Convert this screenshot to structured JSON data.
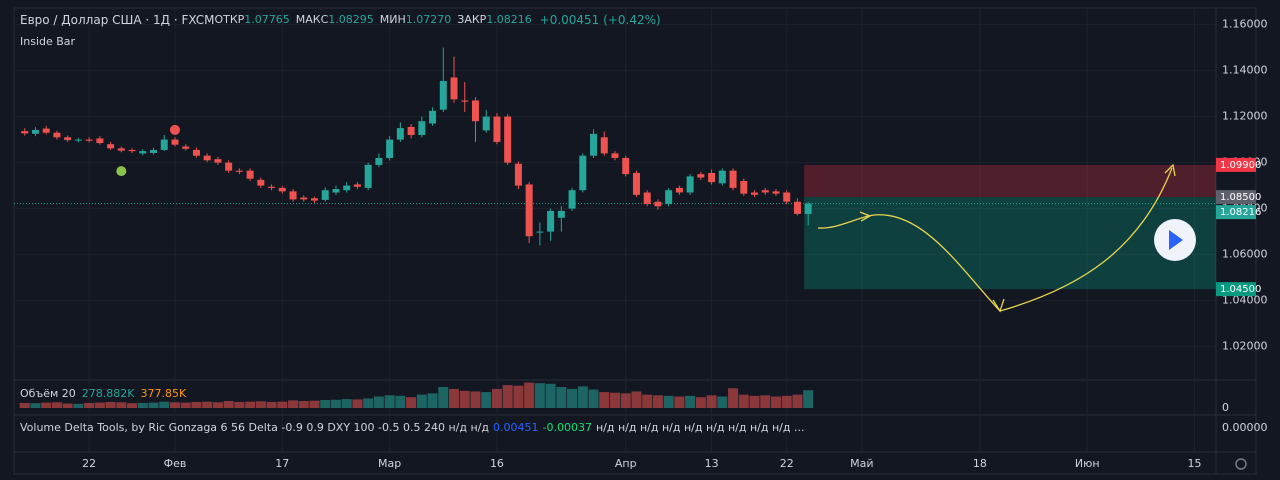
{
  "chart_data": {
    "type": "candlestick",
    "symbol": "Евро / Доллар США · 1Д · FXCM",
    "ohlc_legend": [
      {
        "label": "ОТКР",
        "value": "1.07765"
      },
      {
        "label": "МАКС",
        "value": "1.08295"
      },
      {
        "label": "МИН",
        "value": "1.07270"
      },
      {
        "label": "ЗАКР",
        "value": "1.08216"
      }
    ],
    "change": "+0.00451 (+0.42%)",
    "indicator": "Inside Bar",
    "up_color": "#26a69a",
    "down_color": "#ef5350",
    "open": [
      1.1137,
      1.1125,
      1.1148,
      1.113,
      1.111,
      1.1097,
      1.11,
      1.1105,
      1.108,
      1.1062,
      1.1055,
      1.104,
      1.1042,
      1.1055,
      1.11,
      1.107,
      1.1055,
      1.103,
      1.1015,
      1.1,
      1.0965,
      1.0965,
      1.0925,
      1.0895,
      1.089,
      1.0875,
      1.0848,
      1.0845,
      1.0838,
      1.087,
      1.088,
      1.0905,
      1.089,
      1.099,
      1.102,
      1.11,
      1.1155,
      1.112,
      1.117,
      1.123,
      1.137,
      1.127,
      1.127,
      1.114,
      1.12,
      1.12,
      1.0995,
      1.0905,
      1.07,
      1.07,
      1.076,
      1.08,
      1.088,
      1.103,
      1.111,
      1.104,
      1.102,
      1.0955,
      1.087,
      1.083,
      1.082,
      1.089,
      1.087,
      1.095,
      1.0955,
      1.091,
      1.0965,
      1.092,
      1.087,
      1.088,
      1.0875,
      1.087,
      1.083,
      1.07765
    ],
    "high": [
      1.1149,
      1.1154,
      1.116,
      1.1138,
      1.1118,
      1.1108,
      1.111,
      1.1115,
      1.109,
      1.107,
      1.1062,
      1.1058,
      1.1065,
      1.112,
      1.111,
      1.108,
      1.1065,
      1.104,
      1.1025,
      1.101,
      1.0975,
      1.0975,
      1.0935,
      1.0905,
      1.0898,
      1.0885,
      1.0858,
      1.0852,
      1.0892,
      1.09,
      1.0915,
      1.0915,
      1.1,
      1.104,
      1.1115,
      1.1175,
      1.1168,
      1.12,
      1.124,
      1.15,
      1.146,
      1.135,
      1.1285,
      1.123,
      1.1215,
      1.121,
      1.1005,
      1.0915,
      1.074,
      1.08,
      1.081,
      1.089,
      1.104,
      1.1145,
      1.1135,
      1.105,
      1.103,
      1.0965,
      1.088,
      1.084,
      1.089,
      1.09,
      1.095,
      1.096,
      1.097,
      1.0975,
      1.0975,
      1.093,
      1.088,
      1.089,
      1.0885,
      1.088,
      1.0845,
      1.08295
    ],
    "low": [
      1.1118,
      1.1115,
      1.1122,
      1.11,
      1.109,
      1.1088,
      1.1088,
      1.1078,
      1.1055,
      1.1045,
      1.1042,
      1.1032,
      1.1035,
      1.105,
      1.107,
      1.1052,
      1.1022,
      1.1002,
      1.099,
      1.0955,
      1.095,
      1.092,
      1.089,
      1.088,
      1.0865,
      1.083,
      1.083,
      1.0825,
      1.083,
      1.086,
      1.087,
      1.0885,
      1.088,
      1.098,
      1.101,
      1.109,
      1.1105,
      1.111,
      1.116,
      1.122,
      1.126,
      1.122,
      1.109,
      1.113,
      1.108,
      1.099,
      1.0885,
      1.065,
      1.064,
      1.066,
      1.07,
      1.079,
      1.087,
      1.102,
      1.103,
      1.101,
      1.094,
      1.085,
      1.081,
      1.0795,
      1.081,
      1.086,
      1.086,
      1.0925,
      1.0905,
      1.09,
      1.088,
      1.0855,
      1.085,
      1.086,
      1.0855,
      1.082,
      1.077,
      1.0727
    ],
    "close": [
      1.1127,
      1.1142,
      1.113,
      1.111,
      1.1098,
      1.11,
      1.1095,
      1.1085,
      1.1062,
      1.1052,
      1.105,
      1.105,
      1.1055,
      1.11,
      1.1078,
      1.106,
      1.103,
      1.101,
      1.1,
      1.0965,
      1.096,
      1.093,
      1.09,
      1.089,
      1.0875,
      1.084,
      1.084,
      1.0835,
      1.088,
      1.0885,
      1.09,
      1.0895,
      1.099,
      1.102,
      1.11,
      1.115,
      1.112,
      1.118,
      1.1225,
      1.1355,
      1.1275,
      1.1265,
      1.118,
      1.12,
      1.109,
      1.1,
      1.09,
      1.068,
      1.07,
      1.079,
      1.079,
      1.088,
      1.103,
      1.1125,
      1.104,
      1.102,
      1.095,
      1.086,
      1.082,
      1.081,
      1.088,
      1.087,
      1.094,
      1.0935,
      1.0915,
      1.0965,
      1.089,
      1.0865,
      1.086,
      1.087,
      1.0865,
      1.083,
      1.0777,
      1.08216
    ],
    "markers": [
      {
        "x": 9,
        "y": 1.0963,
        "color": "#8bc34a"
      },
      {
        "x": 14,
        "y": 1.1142,
        "color": "#ef5350"
      }
    ],
    "xlim": [
      -1,
      111
    ],
    "xticks": [
      {
        "value": 6,
        "label": "22"
      },
      {
        "value": 14,
        "label": "Фев"
      },
      {
        "value": 24,
        "label": "17"
      },
      {
        "value": 34,
        "label": "Мар"
      },
      {
        "value": 44,
        "label": "16"
      },
      {
        "value": 56,
        "label": "Апр"
      },
      {
        "value": 64,
        "label": "13"
      },
      {
        "value": 71,
        "label": "22"
      },
      {
        "value": 78,
        "label": "Май"
      },
      {
        "value": 89,
        "label": "18"
      },
      {
        "value": 99,
        "label": "Июн"
      },
      {
        "value": 109,
        "label": "15"
      }
    ],
    "ylim": [
      1.0055,
      1.1672
    ],
    "yticks": [
      {
        "value": 1.16,
        "label": "1.16000"
      },
      {
        "value": 1.14,
        "label": "1.14000"
      },
      {
        "value": 1.12,
        "label": "1.12000"
      },
      {
        "value": 1.1,
        "label": "1.10000"
      },
      {
        "value": 1.08,
        "label": "1.08000"
      },
      {
        "value": 1.06,
        "label": "1.06000"
      },
      {
        "value": 1.04,
        "label": "1.04000"
      },
      {
        "value": 1.02,
        "label": "1.02000"
      }
    ],
    "last_price": {
      "value": 1.08216,
      "label": "1.08216"
    },
    "position": {
      "start": 73,
      "stop": {
        "value": 1.099,
        "label": "1.09900"
      },
      "entry": {
        "value": 1.085,
        "label": "1.08500"
      },
      "target": {
        "value": 1.045,
        "label": "1.04500"
      }
    },
    "volume": {
      "title": "Объём 20",
      "last": "278.882K",
      "ma": "377.85K",
      "values": [
        80,
        75,
        85,
        90,
        70,
        65,
        80,
        85,
        95,
        90,
        75,
        80,
        85,
        100,
        90,
        85,
        95,
        100,
        90,
        110,
        95,
        100,
        105,
        95,
        100,
        120,
        110,
        115,
        125,
        130,
        140,
        135,
        150,
        180,
        200,
        190,
        170,
        210,
        230,
        330,
        300,
        270,
        260,
        250,
        300,
        360,
        350,
        400,
        390,
        380,
        330,
        300,
        340,
        290,
        250,
        240,
        230,
        260,
        210,
        200,
        190,
        180,
        190,
        170,
        200,
        180,
        310,
        210,
        190,
        200,
        180,
        190,
        210,
        278.882
      ],
      "ylim": [
        0,
        440
      ],
      "yticks": [
        0
      ]
    },
    "delta": {
      "title": "Volume Delta Tools, by Ric Gonzaga 6 56 Delta -0.9 0.9 DXY 100 -0.5 0.5 240 н/д н/д",
      "v1": "0.00451",
      "v2": "-0.00037",
      "rest": "н/д н/д н/д н/д н/д н/д н/д н/д н/д ...",
      "scale": "0.00000"
    }
  }
}
